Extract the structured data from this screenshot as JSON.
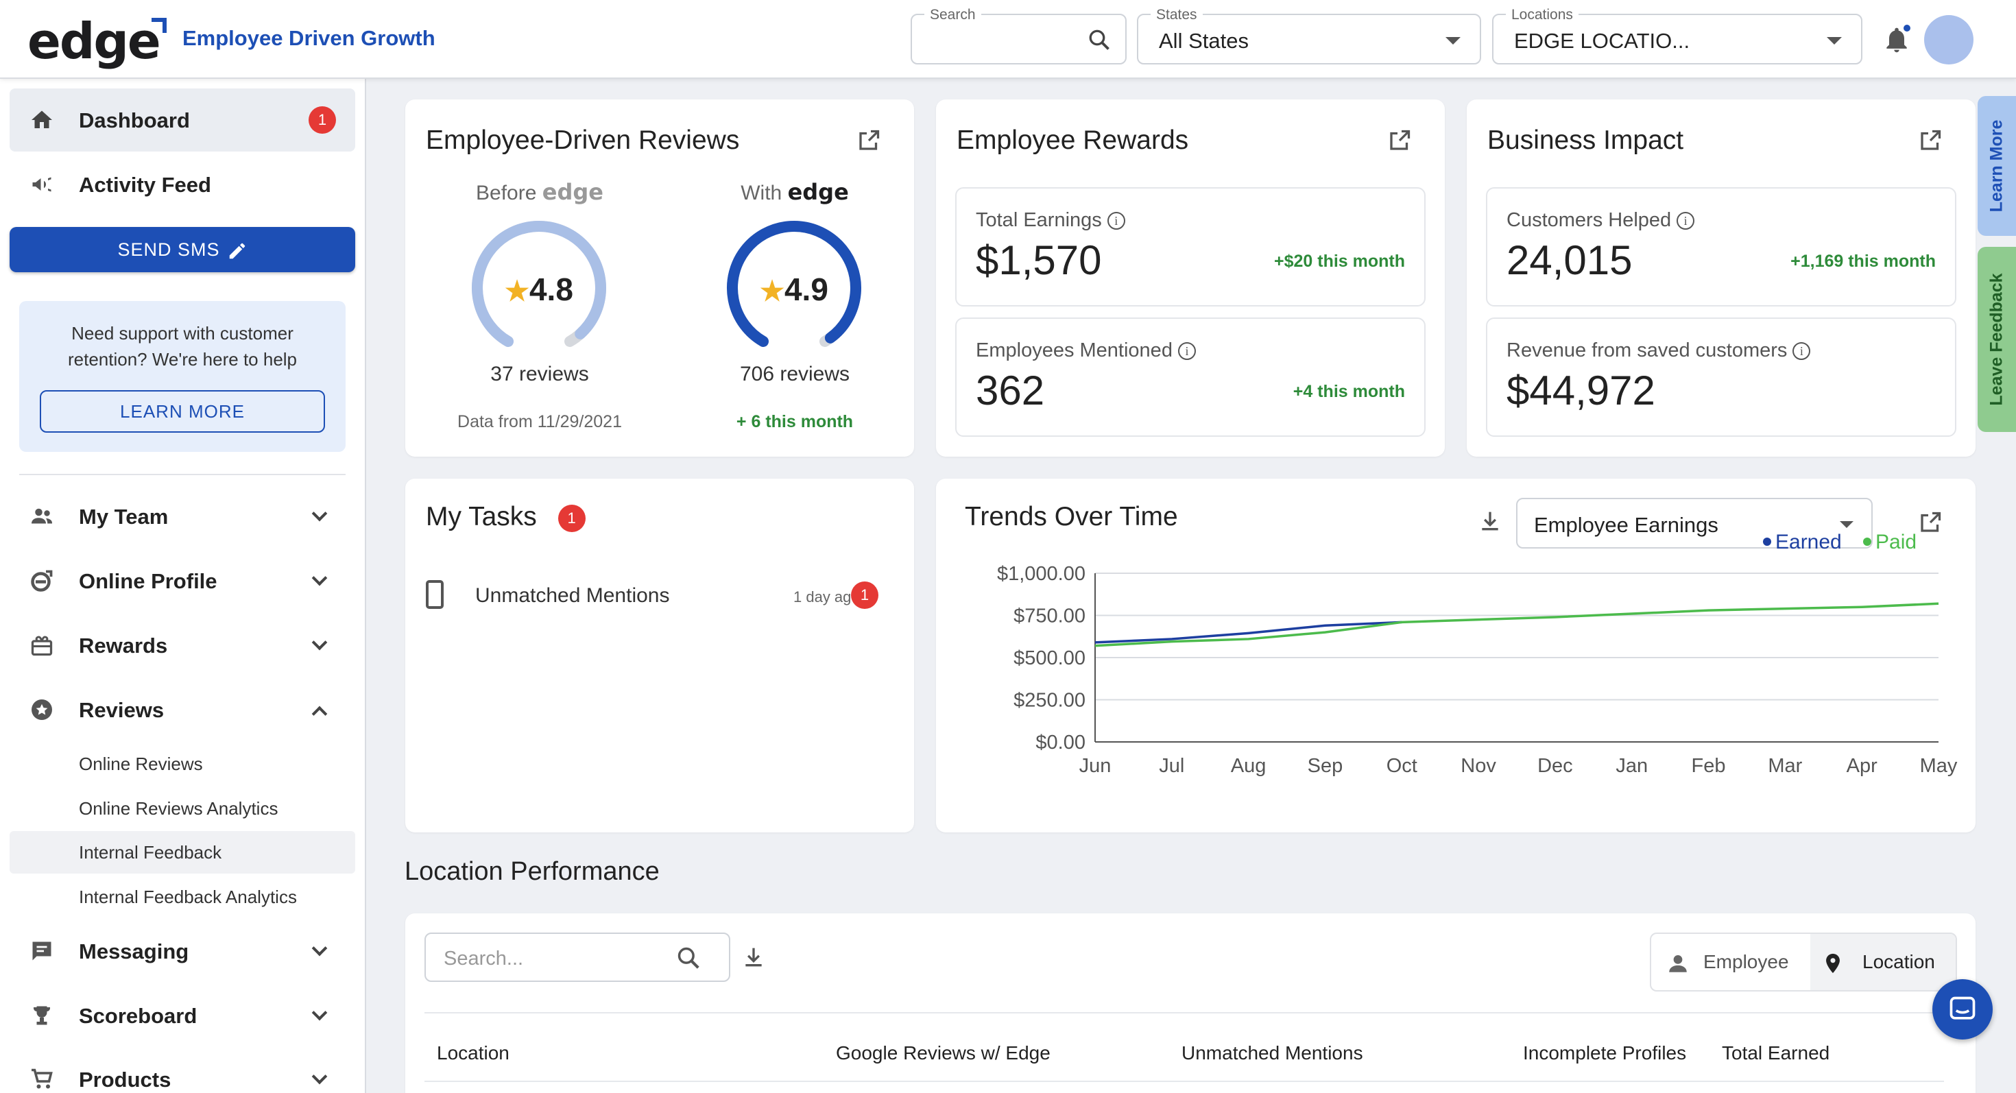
{
  "header": {
    "logo": "edge",
    "tagline": "Employee Driven Growth",
    "search": {
      "label": "Search",
      "value": ""
    },
    "states": {
      "label": "States",
      "value": "All States"
    },
    "locations": {
      "label": "Locations",
      "value": "EDGE LOCATIO..."
    }
  },
  "sidebar": {
    "items": [
      {
        "label": "Dashboard",
        "badge": "1",
        "icon": "home-icon"
      },
      {
        "label": "Activity Feed",
        "icon": "megaphone-icon"
      },
      {
        "label": "My Team",
        "icon": "people-icon"
      },
      {
        "label": "Online Profile",
        "icon": "edge-icon"
      },
      {
        "label": "Rewards",
        "icon": "gift-icon"
      },
      {
        "label": "Reviews",
        "icon": "star-circle-icon"
      },
      {
        "label": "Messaging",
        "icon": "message-icon"
      },
      {
        "label": "Scoreboard",
        "icon": "trophy-icon"
      },
      {
        "label": "Products",
        "icon": "cart-icon"
      }
    ],
    "send_sms": "SEND SMS",
    "support_text": "Need support with customer retention? We're here to help",
    "learn_more": "LEARN MORE",
    "reviews_sub": [
      "Online Reviews",
      "Online Reviews Analytics",
      "Internal Feedback",
      "Internal Feedback Analytics"
    ]
  },
  "reviews_card": {
    "title": "Employee-Driven Reviews",
    "before_label": "Before",
    "with_label": "With",
    "brand": "edge",
    "before_score": "4.8",
    "after_score": "4.9",
    "before_fraction": 0.96,
    "after_fraction": 0.98,
    "before_reviews": "37 reviews",
    "after_reviews": "706 reviews",
    "before_foot": "Data from 11/29/2021",
    "after_foot": "+ 6 this month"
  },
  "rewards_card": {
    "title": "Employee Rewards",
    "stats": [
      {
        "label": "Total Earnings",
        "value": "$1,570",
        "delta": "+$20 this month"
      },
      {
        "label": "Employees Mentioned",
        "value": "362",
        "delta": "+4 this month"
      }
    ]
  },
  "impact_card": {
    "title": "Business Impact",
    "stats": [
      {
        "label": "Customers Helped",
        "value": "24,015",
        "delta": "+1,169 this month"
      },
      {
        "label": "Revenue from saved customers",
        "value": "$44,972",
        "delta": ""
      }
    ]
  },
  "tasks_card": {
    "title": "My Tasks",
    "badge": "1",
    "tasks": [
      {
        "label": "Unmatched Mentions",
        "ago": "1 day ago",
        "badge": "1"
      }
    ]
  },
  "trends_card": {
    "title": "Trends Over Time",
    "metric": "Employee Earnings"
  },
  "chart_data": {
    "type": "line",
    "title": "",
    "categories": [
      "Jun",
      "Jul",
      "Aug",
      "Sep",
      "Oct",
      "Nov",
      "Dec",
      "Jan",
      "Feb",
      "Mar",
      "Apr",
      "May"
    ],
    "y_ticks": [
      "$0.00",
      "$250.00",
      "$500.00",
      "$750.00",
      "$1,000.00"
    ],
    "ylim": [
      0,
      1000
    ],
    "legend_position": "top-right",
    "series": [
      {
        "name": "Earned",
        "color": "#1d3fa0",
        "values": [
          590,
          610,
          645,
          690,
          710,
          null,
          null,
          null,
          null,
          null,
          null,
          null
        ]
      },
      {
        "name": "Paid",
        "color": "#4cbb4c",
        "values": [
          570,
          595,
          610,
          650,
          710,
          725,
          740,
          760,
          780,
          790,
          800,
          820
        ]
      }
    ]
  },
  "location_performance": {
    "title": "Location Performance",
    "search_placeholder": "Search...",
    "toggle": [
      "Employee",
      "Location"
    ],
    "columns": [
      "Location",
      "Google Reviews w/ Edge",
      "Unmatched Mentions",
      "Incomplete Profiles",
      "Total Earned"
    ]
  },
  "side_tabs": {
    "learn_more": "Learn More",
    "leave_feedback": "Leave Feedback"
  },
  "colors": {
    "primary": "#1d4fb5",
    "danger": "#e53935",
    "success": "#2e8b3a"
  }
}
